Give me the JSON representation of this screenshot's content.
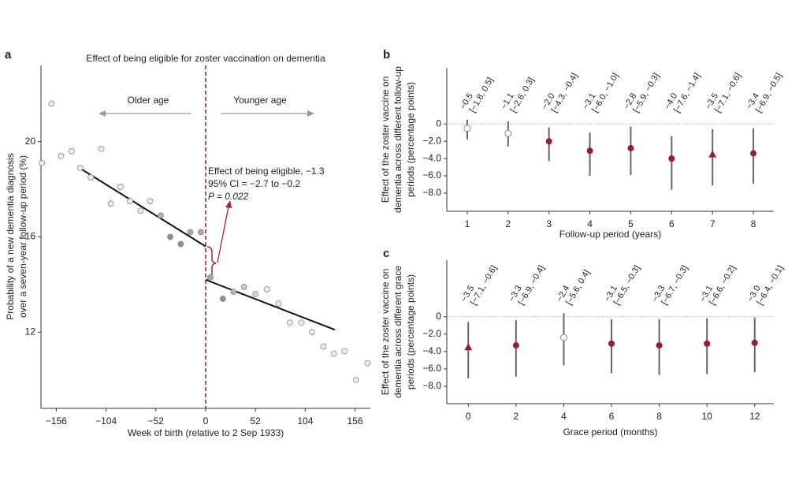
{
  "chart_data": [
    {
      "type": "scatter",
      "panel": "a",
      "title": "Effect of being eligible for zoster vaccination on dementia",
      "xlabel": "Week of birth (relative to 2 Sep 1933)",
      "ylabel": [
        "Probability of a new dementia diagnosis",
        "over a seven-year follow-up period (%)"
      ],
      "x": [
        -171,
        -161,
        -151,
        -140,
        -131,
        -120,
        -109,
        -99,
        -89,
        -79,
        -68,
        -58,
        -47,
        -37,
        -26,
        -16,
        -5,
        5,
        18,
        29,
        40,
        52,
        64,
        76,
        88,
        100,
        111,
        123,
        134,
        145,
        157,
        169
      ],
      "y": [
        19.1,
        21.6,
        19.4,
        19.6,
        18.9,
        18.5,
        19.7,
        17.4,
        18.1,
        17.5,
        17.1,
        17.5,
        16.9,
        16.0,
        15.7,
        16.2,
        16.2,
        14.3,
        13.4,
        13.7,
        13.9,
        13.6,
        13.8,
        13.2,
        12.4,
        12.4,
        12.0,
        11.4,
        11.1,
        11.2,
        10.0,
        10.7
      ],
      "colors": [
        "#ececec",
        "#ececec",
        "#ececec",
        "#ececec",
        "#ececec",
        "#ececec",
        "#ececec",
        "#ececec",
        "#ececec",
        "#ececec",
        "#ececec",
        "#ececec",
        "#b5b5b5",
        "#8f8f8f",
        "#8f8f8f",
        "#a8a8a8",
        "#a8a8a8",
        "#a8a8a8",
        "#8f8f8f",
        "#b5b5b5",
        "#c8c8c8",
        "#d5d5d5",
        "#ececec",
        "#ececec",
        "#ececec",
        "#ececec",
        "#ececec",
        "#ececec",
        "#ececec",
        "#ececec",
        "#ececec",
        "#ececec"
      ],
      "fit_lines": [
        {
          "x": [
            -132,
            0
          ],
          "y": [
            18.9,
            15.6
          ]
        },
        {
          "x": [
            0,
            135
          ],
          "y": [
            14.2,
            12.1
          ]
        }
      ],
      "fit_color": "#111111",
      "cutoff_x": 0,
      "cutoff_color": "#b0202a",
      "annotations": [
        "Older age",
        "Younger age",
        "Effect of being eligible, −1.3",
        "95% CI = −2.7 to −0.2",
        "P = 0.022"
      ],
      "xlim": [
        -172,
        172
      ],
      "ylim": [
        8.8,
        23.2
      ],
      "xticks": [
        {
          "value": -156,
          "label": "−156"
        },
        {
          "value": -104,
          "label": "−104"
        },
        {
          "value": -52,
          "label": "−52"
        },
        0,
        52,
        104,
        156
      ],
      "yticks": [
        12,
        16,
        20
      ]
    },
    {
      "type": "errorbar",
      "panel": "b",
      "xlabel": "Follow-up period (years)",
      "ylabel": [
        "Effect of the zoster vaccine on",
        "dementia across different follow-up",
        "periods (percentage points)"
      ],
      "x": [
        1,
        2,
        3,
        4,
        5,
        6,
        7,
        8
      ],
      "values": [
        -0.5,
        -1.1,
        -2.0,
        -3.1,
        -2.8,
        -4.0,
        -3.5,
        -3.4
      ],
      "lower": [
        -1.8,
        -2.6,
        -4.3,
        -6.0,
        -5.9,
        -7.6,
        -7.1,
        -6.9
      ],
      "upper": [
        0.5,
        0.3,
        -0.4,
        -1.0,
        -0.3,
        -1.4,
        -0.6,
        -0.5
      ],
      "value_labels": [
        "−0.5",
        "−1.1",
        "−2.0",
        "−3.1",
        "−2.8",
        "−4.0",
        "−3.5",
        "−3.4"
      ],
      "ci_labels": [
        "[−1.8, 0.5]",
        "[−2.6, 0.3]",
        "[−4.3, −0.4]",
        "[−6.0, −1.0]",
        "[−5.9, −0.3]",
        "[−7.6, −1.4]",
        "[−7.1, −0.6]",
        "[−6.9, −0.5]"
      ],
      "colors": [
        "#ffffff",
        "#ffffff",
        "#9b1b30",
        "#9b1b30",
        "#9b1b30",
        "#9b1b30",
        "#9b1b30",
        "#9b1b30"
      ],
      "markers": [
        "circle",
        "circle",
        "circle",
        "circle",
        "circle",
        "circle",
        "triangle",
        "circle"
      ],
      "xlim": [
        0.5,
        8.5
      ],
      "ylim": [
        -10.1,
        6.5
      ],
      "xticks": [
        1,
        2,
        3,
        4,
        5,
        6,
        7,
        8
      ],
      "yticks": [
        0,
        {
          "value": -2,
          "label": "−2.0"
        },
        {
          "value": -4,
          "label": "−4.0"
        },
        {
          "value": -6,
          "label": "−6.0"
        },
        {
          "value": -8,
          "label": "−8.0"
        }
      ]
    },
    {
      "type": "errorbar",
      "panel": "c",
      "xlabel": "Grace period (months)",
      "ylabel": [
        "Effect of the zoster vaccine on",
        "dementia across different grace",
        "periods (percentage points)"
      ],
      "x": [
        0,
        2,
        4,
        6,
        8,
        10,
        12
      ],
      "values": [
        -3.5,
        -3.3,
        -2.4,
        -3.1,
        -3.3,
        -3.1,
        -3.0
      ],
      "lower": [
        -7.1,
        -6.9,
        -5.6,
        -6.5,
        -6.7,
        -6.6,
        -6.4
      ],
      "upper": [
        -0.6,
        -0.4,
        0.4,
        -0.3,
        -0.3,
        -0.2,
        -0.1
      ],
      "value_labels": [
        "−3.5",
        "−3.3",
        "−2.4",
        "−3.1",
        "−3.3",
        "−3.1",
        "−3.0"
      ],
      "ci_labels": [
        "[−7.1, −0.6]",
        "[−6.9, −0.4]",
        "[−5.6, 0.4]",
        "[−6.5, −0.3]",
        "[−6.7, −0.3]",
        "[−6.6, −0.2]",
        "[−6.4, −0.1]"
      ],
      "colors": [
        "#9b1b30",
        "#9b1b30",
        "#ffffff",
        "#9b1b30",
        "#9b1b30",
        "#9b1b30",
        "#9b1b30"
      ],
      "markers": [
        "triangle",
        "circle",
        "circle",
        "circle",
        "circle",
        "circle",
        "circle"
      ],
      "xlim": [
        -0.9,
        12.8
      ],
      "ylim": [
        -10.0,
        6.5
      ],
      "xticks": [
        0,
        2,
        4,
        6,
        8,
        10,
        12
      ],
      "yticks": [
        0,
        {
          "value": -2,
          "label": "−2.0"
        },
        {
          "value": -4,
          "label": "−4.0"
        },
        {
          "value": -6,
          "label": "−6.0"
        },
        {
          "value": -8,
          "label": "−8.0"
        }
      ]
    }
  ]
}
